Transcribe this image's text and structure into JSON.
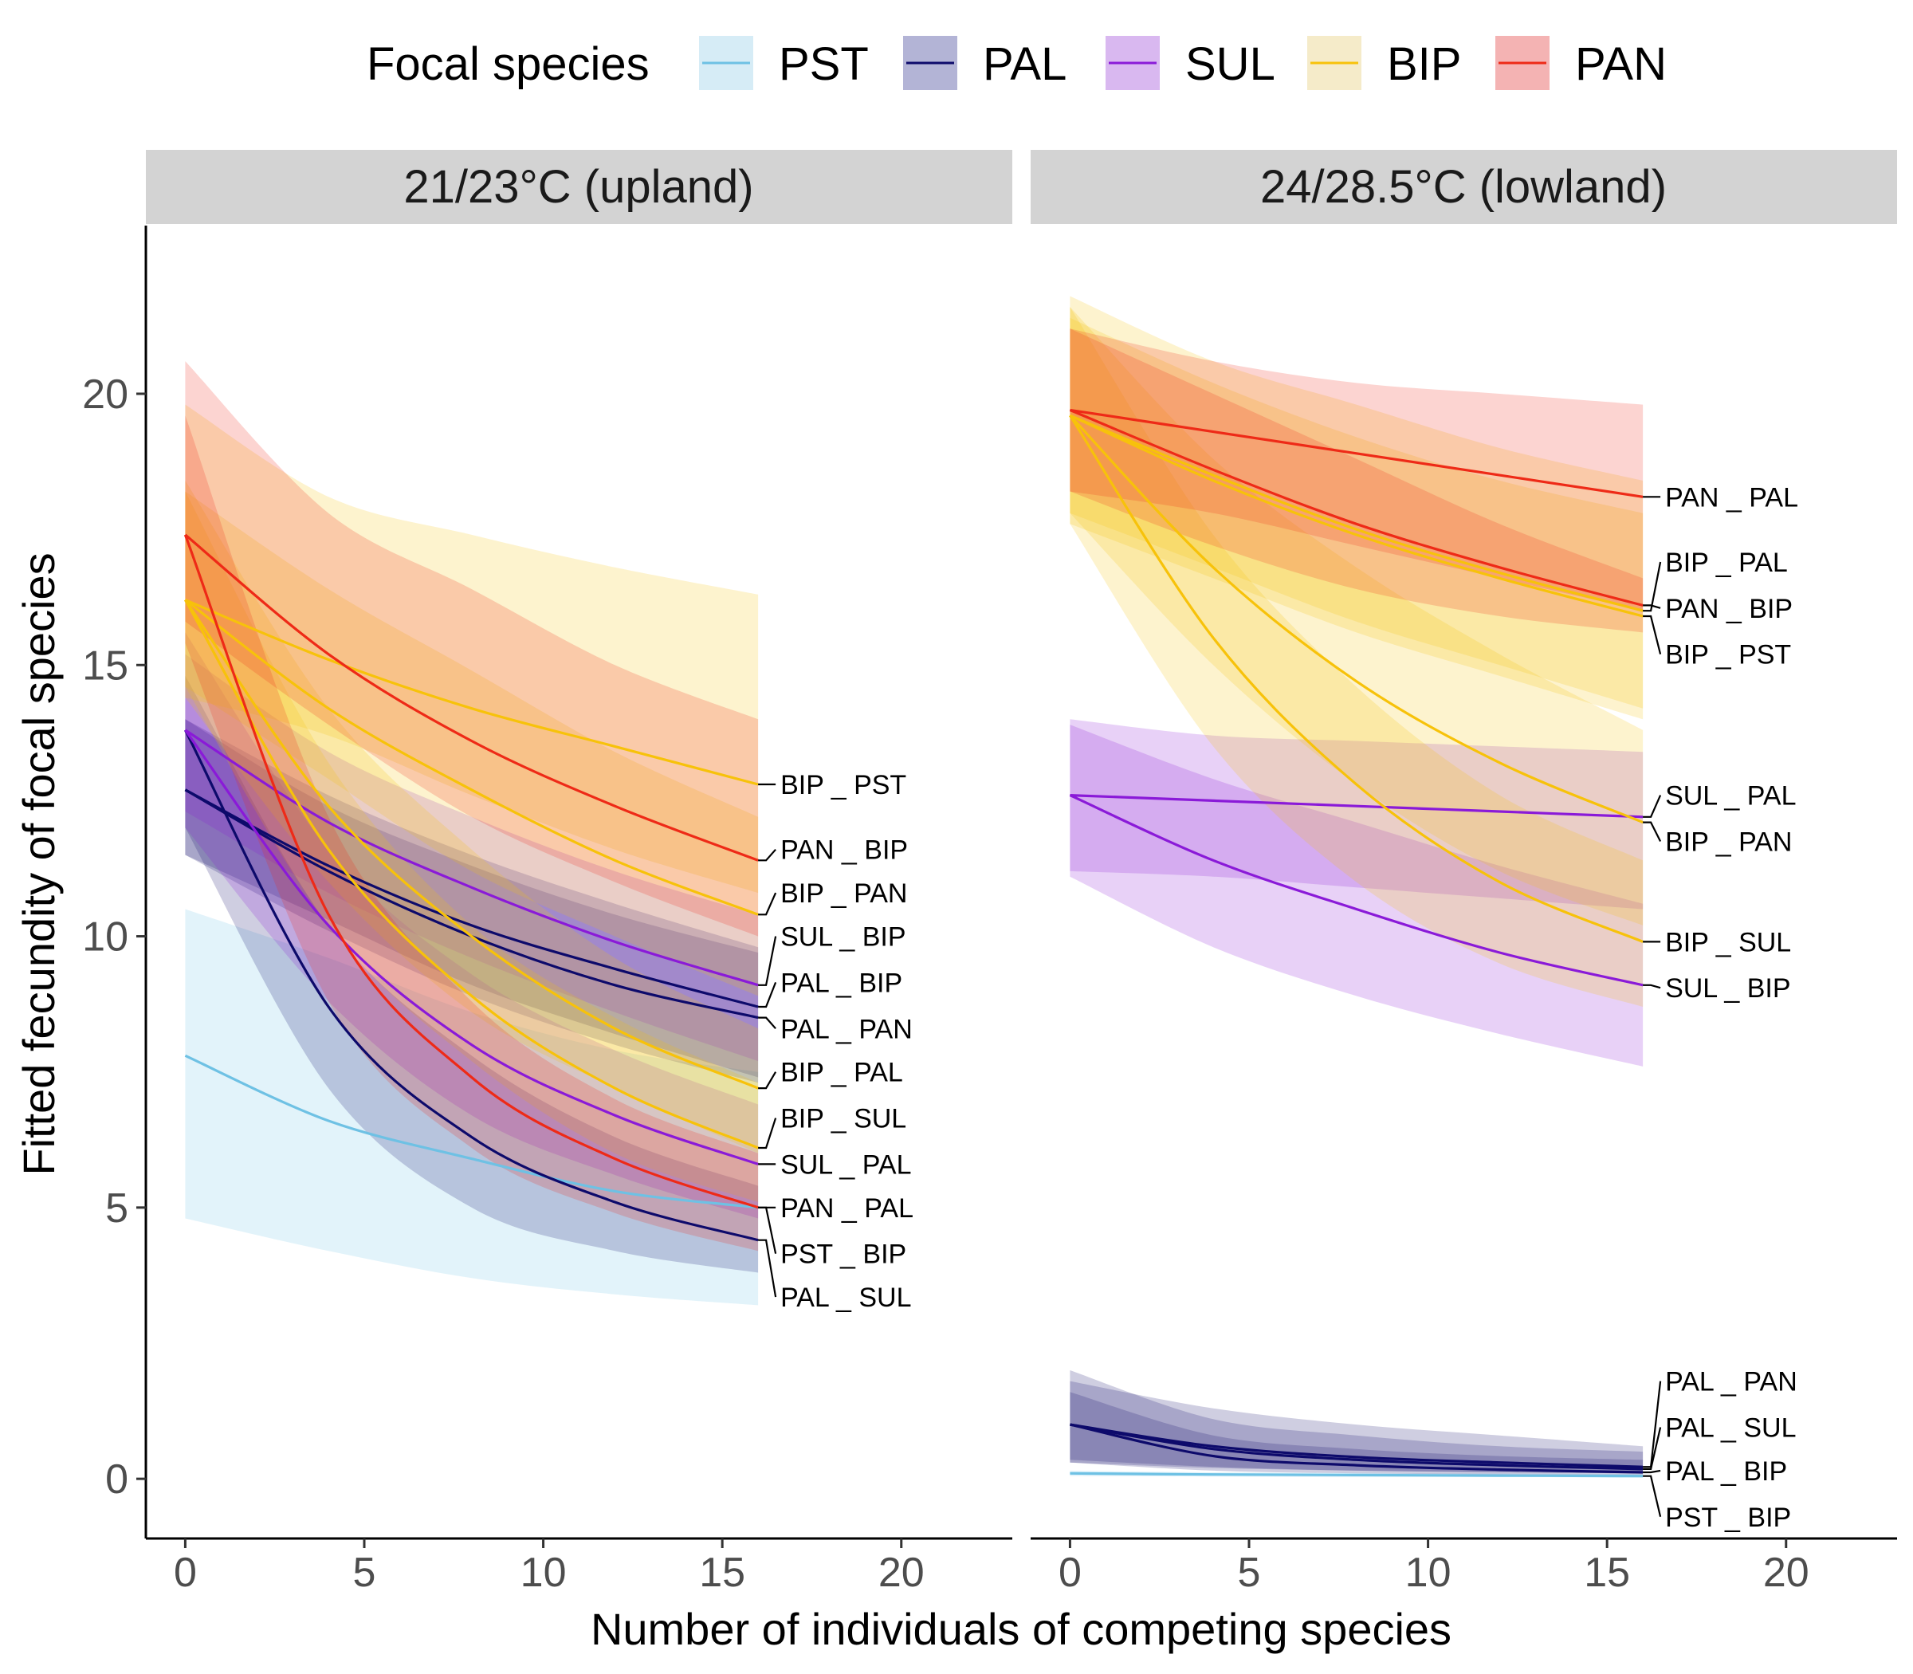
{
  "chart_data": {
    "type": "line",
    "xlabel": "Number of individuals of competing species",
    "ylabel": "Fitted fecundity of focal species",
    "xlim": [
      -1.1,
      23.1
    ],
    "ylim": [
      -1.1,
      23.1
    ],
    "xticks": [
      0,
      5,
      10,
      15,
      20
    ],
    "yticks": [
      0,
      5,
      10,
      15,
      20
    ],
    "grid": false,
    "legend": {
      "title": "Focal species",
      "position": "top",
      "entries": [
        {
          "name": "PST",
          "color": "#6ec1e4",
          "fill": "#d6ecf6"
        },
        {
          "name": "PAL",
          "color": "#0d0a6b",
          "fill": "#b3b4d6"
        },
        {
          "name": "SUL",
          "color": "#8a1ad8",
          "fill": "#d9b8f0"
        },
        {
          "name": "BIP",
          "color": "#f7c20a",
          "fill": "#f5ebc9"
        },
        {
          "name": "PAN",
          "color": "#ee2a17",
          "fill": "#f4b3b3"
        }
      ]
    },
    "panels": [
      {
        "strip": "21/23°C (upland)",
        "series": [
          {
            "label": "PST _ BIP",
            "focal": "PST",
            "x": [
              0,
              4,
              8,
              12,
              16
            ],
            "y": [
              7.8,
              6.6,
              5.9,
              5.3,
              5.0
            ],
            "lower": [
              4.8,
              4.2,
              3.7,
              3.4,
              3.2
            ],
            "upper": [
              10.5,
              9.6,
              8.6,
              7.9,
              7.5
            ]
          },
          {
            "label": "PAL _ BIP",
            "focal": "PAL",
            "x": [
              0,
              4,
              8,
              12,
              16
            ],
            "y": [
              12.7,
              11.3,
              10.2,
              9.4,
              8.7
            ],
            "lower": [
              11.5,
              10.3,
              9.1,
              8.2,
              7.4
            ],
            "upper": [
              14.0,
              12.6,
              11.5,
              10.6,
              9.8
            ]
          },
          {
            "label": "PAL _ PAN",
            "focal": "PAL",
            "x": [
              0,
              4,
              8,
              12,
              16
            ],
            "y": [
              12.7,
              11.2,
              10.0,
              9.1,
              8.5
            ],
            "lower": [
              11.5,
              10.1,
              8.9,
              8.0,
              7.3
            ],
            "upper": [
              14.0,
              12.4,
              11.3,
              10.4,
              9.7
            ]
          },
          {
            "label": "PAL _ SUL",
            "focal": "PAL",
            "x": [
              0,
              4,
              8,
              12,
              16
            ],
            "y": [
              13.8,
              8.7,
              6.3,
              5.1,
              4.4
            ],
            "lower": [
              12.0,
              7.2,
              5.0,
              4.2,
              3.8
            ],
            "upper": [
              14.8,
              10.2,
              7.8,
              6.3,
              5.4
            ]
          },
          {
            "label": "SUL _ BIP",
            "focal": "SUL",
            "x": [
              0,
              4,
              8,
              12,
              16
            ],
            "y": [
              13.8,
              12.1,
              10.9,
              9.9,
              9.1
            ],
            "lower": [
              12.3,
              10.8,
              9.6,
              8.6,
              7.7
            ],
            "upper": [
              15.2,
              13.4,
              12.2,
              11.2,
              10.4
            ]
          },
          {
            "label": "SUL _ PAL",
            "focal": "SUL",
            "x": [
              0,
              4,
              8,
              12,
              16
            ],
            "y": [
              13.8,
              10.2,
              8.0,
              6.7,
              5.8
            ],
            "lower": [
              12.0,
              8.8,
              6.7,
              5.6,
              4.8
            ],
            "upper": [
              15.6,
              11.6,
              9.3,
              7.9,
              6.9
            ]
          },
          {
            "label": "BIP _ PST",
            "focal": "BIP",
            "x": [
              0,
              4,
              8,
              12,
              16
            ],
            "y": [
              16.2,
              15.1,
              14.2,
              13.5,
              12.8
            ],
            "lower": [
              14.4,
              13.7,
              12.6,
              11.6,
              10.8
            ],
            "upper": [
              19.8,
              18.1,
              17.4,
              16.8,
              16.3
            ]
          },
          {
            "label": "BIP _ PAN",
            "focal": "BIP",
            "x": [
              0,
              4,
              8,
              12,
              16
            ],
            "y": [
              16.2,
              14.2,
              12.7,
              11.4,
              10.4
            ],
            "lower": [
              14.6,
              12.9,
              11.2,
              10.0,
              8.9
            ],
            "upper": [
              18.2,
              16.4,
              14.9,
              13.4,
              12.2
            ]
          },
          {
            "label": "BIP _ PAL",
            "focal": "BIP",
            "x": [
              0,
              4,
              8,
              12,
              16
            ],
            "y": [
              16.2,
              12.4,
              10.0,
              8.3,
              7.2
            ],
            "lower": [
              14.4,
              11.0,
              8.6,
              7.2,
              6.0
            ],
            "upper": [
              18.4,
              14.2,
              11.6,
              9.6,
              8.3
            ]
          },
          {
            "label": "BIP _ SUL",
            "focal": "BIP",
            "x": [
              0,
              4,
              8,
              12,
              16
            ],
            "y": [
              16.2,
              11.6,
              8.9,
              7.2,
              6.1
            ],
            "lower": [
              14.6,
              10.2,
              7.7,
              6.0,
              5.1
            ],
            "upper": [
              18.2,
              13.2,
              10.2,
              8.5,
              7.3
            ]
          },
          {
            "label": "PAN _ BIP",
            "focal": "PAN",
            "x": [
              0,
              4,
              8,
              12,
              16
            ],
            "y": [
              17.4,
              15.2,
              13.6,
              12.4,
              11.4
            ],
            "lower": [
              15.8,
              13.9,
              12.2,
              11.0,
              10.0
            ],
            "upper": [
              20.6,
              17.8,
              16.4,
              15.0,
              14.0
            ]
          },
          {
            "label": "PAN _ PAL",
            "focal": "PAN",
            "x": [
              0,
              4,
              8,
              12,
              16
            ],
            "y": [
              17.4,
              10.4,
              7.4,
              5.9,
              5.0
            ],
            "lower": [
              15.4,
              8.8,
              6.1,
              4.9,
              4.2
            ],
            "upper": [
              19.6,
              12.2,
              8.8,
              7.0,
              6.0
            ]
          }
        ],
        "labels": [
          {
            "text": "BIP _ PST",
            "y": 12.8,
            "anchor": "BIP _ PST"
          },
          {
            "text": "PAN _ BIP",
            "y": 11.6,
            "anchor": "PAN _ BIP"
          },
          {
            "text": "BIP _ PAN",
            "y": 10.8,
            "anchor": "BIP _ PAN"
          },
          {
            "text": "SUL _ BIP",
            "y": 10.0,
            "anchor": "SUL _ BIP"
          },
          {
            "text": "PAL _ BIP",
            "y": 9.15,
            "anchor": "PAL _ BIP"
          },
          {
            "text": "PAL _ PAN",
            "y": 8.3,
            "anchor": "PAL _ PAN"
          },
          {
            "text": "BIP _ PAL",
            "y": 7.5,
            "anchor": "BIP _ PAL"
          },
          {
            "text": "BIP _ SUL",
            "y": 6.65,
            "anchor": "BIP _ SUL"
          },
          {
            "text": "SUL _ PAL",
            "y": 5.8,
            "anchor": "SUL _ PAL"
          },
          {
            "text": "PAN _ PAL",
            "y": 5.0,
            "anchor": "PAN _ PAL"
          },
          {
            "text": "PST _ BIP",
            "y": 4.15,
            "anchor": "PST _ BIP"
          },
          {
            "text": "PAL _ SUL",
            "y": 3.35,
            "anchor": "PAL _ SUL"
          }
        ]
      },
      {
        "strip": "24/28.5°C (lowland)",
        "series": [
          {
            "label": "PST _ BIP",
            "focal": "PST",
            "x": [
              0,
              4,
              8,
              12,
              16
            ],
            "y": [
              0.1,
              0.08,
              0.07,
              0.06,
              0.05
            ],
            "lower": [
              0.05,
              0.04,
              0.03,
              0.03,
              0.02
            ],
            "upper": [
              0.15,
              0.12,
              0.11,
              0.1,
              0.09
            ]
          },
          {
            "label": "PAL _ PAN",
            "focal": "PAL",
            "x": [
              0,
              4,
              8,
              12,
              16
            ],
            "y": [
              1.0,
              0.6,
              0.4,
              0.3,
              0.22
            ],
            "lower": [
              0.3,
              0.2,
              0.15,
              0.12,
              0.1
            ],
            "upper": [
              2.0,
              1.1,
              0.8,
              0.6,
              0.5
            ]
          },
          {
            "label": "PAL _ SUL",
            "focal": "PAL",
            "x": [
              0,
              4,
              8,
              12,
              16
            ],
            "y": [
              1.0,
              0.55,
              0.35,
              0.25,
              0.18
            ],
            "lower": [
              0.35,
              0.22,
              0.15,
              0.12,
              0.1
            ],
            "upper": [
              1.8,
              1.3,
              1.0,
              0.8,
              0.6
            ]
          },
          {
            "label": "PAL _ BIP",
            "focal": "PAL",
            "x": [
              0,
              4,
              8,
              12,
              16
            ],
            "y": [
              1.0,
              0.42,
              0.25,
              0.17,
              0.12
            ],
            "lower": [
              0.3,
              0.15,
              0.1,
              0.08,
              0.06
            ],
            "upper": [
              1.6,
              0.8,
              0.55,
              0.42,
              0.35
            ]
          },
          {
            "label": "SUL _ PAL",
            "focal": "SUL",
            "x": [
              0,
              4,
              8,
              12,
              16
            ],
            "y": [
              12.6,
              12.5,
              12.4,
              12.3,
              12.2
            ],
            "lower": [
              11.2,
              11.1,
              10.9,
              10.7,
              10.5
            ],
            "upper": [
              14.0,
              13.7,
              13.6,
              13.5,
              13.4
            ]
          },
          {
            "label": "SUL _ BIP",
            "focal": "SUL",
            "x": [
              0,
              4,
              8,
              12,
              16
            ],
            "y": [
              12.6,
              11.4,
              10.5,
              9.7,
              9.1
            ],
            "lower": [
              11.1,
              9.8,
              8.9,
              8.2,
              7.6
            ],
            "upper": [
              13.9,
              12.9,
              12.1,
              11.3,
              10.6
            ]
          },
          {
            "label": "BIP _ PAL",
            "focal": "BIP",
            "x": [
              0,
              4,
              8,
              12,
              16
            ],
            "y": [
              19.6,
              18.5,
              17.5,
              16.7,
              16.0
            ],
            "lower": [
              17.6,
              16.6,
              15.6,
              14.8,
              14.0
            ],
            "upper": [
              21.8,
              20.6,
              19.8,
              19.0,
              18.4
            ]
          },
          {
            "label": "BIP _ PST",
            "focal": "BIP",
            "x": [
              0,
              4,
              8,
              12,
              16
            ],
            "y": [
              19.6,
              18.4,
              17.4,
              16.6,
              15.9
            ],
            "lower": [
              17.8,
              16.8,
              15.8,
              15.0,
              14.2
            ],
            "upper": [
              21.4,
              20.2,
              19.2,
              18.4,
              17.8
            ]
          },
          {
            "label": "BIP _ PAN",
            "focal": "BIP",
            "x": [
              0,
              4,
              8,
              12,
              16
            ],
            "y": [
              19.6,
              16.8,
              14.7,
              13.2,
              12.1
            ],
            "lower": [
              17.8,
              15.0,
              12.8,
              11.2,
              10.2
            ],
            "upper": [
              21.6,
              18.8,
              16.8,
              15.2,
              13.8
            ]
          },
          {
            "label": "BIP _ SUL",
            "focal": "BIP",
            "x": [
              0,
              4,
              8,
              12,
              16
            ],
            "y": [
              19.6,
              15.5,
              12.8,
              11.0,
              9.9
            ],
            "lower": [
              17.6,
              13.5,
              11.0,
              9.5,
              8.7
            ],
            "upper": [
              21.6,
              17.4,
              14.6,
              12.6,
              11.4
            ]
          },
          {
            "label": "PAN _ PAL",
            "focal": "PAN",
            "x": [
              0,
              4,
              8,
              12,
              16
            ],
            "y": [
              19.7,
              19.3,
              18.9,
              18.5,
              18.1
            ],
            "lower": [
              18.2,
              17.8,
              17.2,
              16.6,
              16.0
            ],
            "upper": [
              21.2,
              20.6,
              20.2,
              20.0,
              19.8
            ]
          },
          {
            "label": "PAN _ BIP",
            "focal": "PAN",
            "x": [
              0,
              4,
              8,
              12,
              16
            ],
            "y": [
              19.7,
              18.6,
              17.6,
              16.8,
              16.1
            ],
            "lower": [
              18.2,
              17.2,
              16.4,
              15.9,
              15.6
            ],
            "upper": [
              21.2,
              20.0,
              18.8,
              17.6,
              16.6
            ]
          }
        ],
        "labels": [
          {
            "text": "PAN _ PAL",
            "y": 18.1,
            "anchor": "PAN _ PAL"
          },
          {
            "text": "BIP _ PAL",
            "y": 16.9,
            "anchor": "BIP _ PAL"
          },
          {
            "text": "PAN _ BIP",
            "y": 16.05,
            "anchor": "PAN _ BIP"
          },
          {
            "text": "BIP _ PST",
            "y": 15.2,
            "anchor": "BIP _ PST"
          },
          {
            "text": "SUL _ PAL",
            "y": 12.6,
            "anchor": "SUL _ PAL"
          },
          {
            "text": "BIP _ PAN",
            "y": 11.75,
            "anchor": "BIP _ PAN"
          },
          {
            "text": "BIP _ SUL",
            "y": 9.9,
            "anchor": "BIP _ SUL"
          },
          {
            "text": "SUL _ BIP",
            "y": 9.05,
            "anchor": "SUL _ BIP"
          },
          {
            "text": "PAL _ PAN",
            "y": 1.8,
            "anchor": "PAL _ PAN"
          },
          {
            "text": "PAL _ SUL",
            "y": 0.95,
            "anchor": "PAL _ SUL"
          },
          {
            "text": "PAL _ BIP",
            "y": 0.15,
            "anchor": "PAL _ BIP"
          },
          {
            "text": "PST _ BIP",
            "y": -0.7,
            "anchor": "PST _ BIP"
          }
        ]
      }
    ]
  }
}
